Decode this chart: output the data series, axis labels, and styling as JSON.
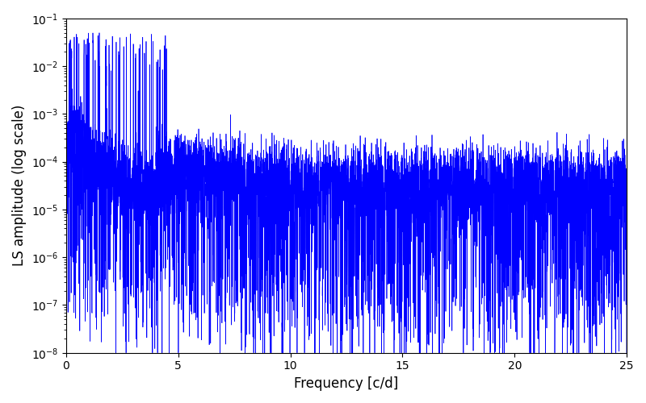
{
  "xlabel": "Frequency [c/d]",
  "ylabel": "LS amplitude (log scale)",
  "xlim": [
    0,
    25
  ],
  "ylim": [
    1e-08,
    0.1
  ],
  "line_color": "#0000ff",
  "line_width": 0.5,
  "background_color": "#ffffff",
  "figsize": [
    8.0,
    5.0
  ],
  "dpi": 100,
  "freq_max": 25.0,
  "n_points": 6000,
  "seed": 77
}
